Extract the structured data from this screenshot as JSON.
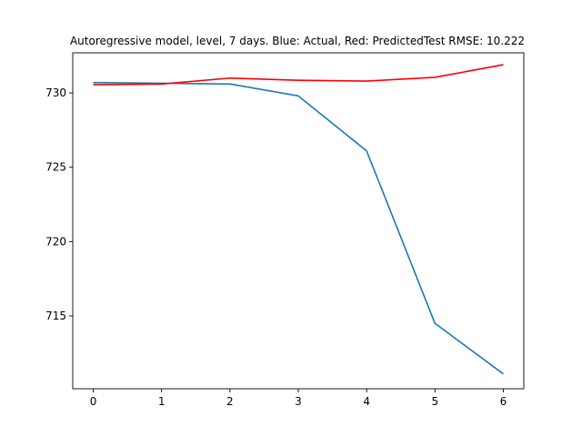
{
  "chart_data": {
    "type": "line",
    "title": "Autoregressive model, level, 7 days. Blue: Actual, Red: PredictedTest RMSE: 10.222",
    "xlabel": "",
    "ylabel": "",
    "x": [
      0,
      1,
      2,
      3,
      4,
      5,
      6
    ],
    "xlim": [
      -0.3,
      6.3
    ],
    "ylim": [
      710.1,
      732.7
    ],
    "xticks": [
      0,
      1,
      2,
      3,
      4,
      5,
      6
    ],
    "yticks": [
      715,
      720,
      725,
      730
    ],
    "grid": false,
    "series": [
      {
        "key": "actual",
        "color": "#1f77b4",
        "values": [
          730.7,
          730.65,
          730.6,
          729.8,
          726.1,
          714.5,
          711.1
        ]
      },
      {
        "key": "predicted",
        "color": "#ff0000",
        "values": [
          730.55,
          730.6,
          731.0,
          730.85,
          730.8,
          731.05,
          731.9
        ]
      }
    ]
  }
}
